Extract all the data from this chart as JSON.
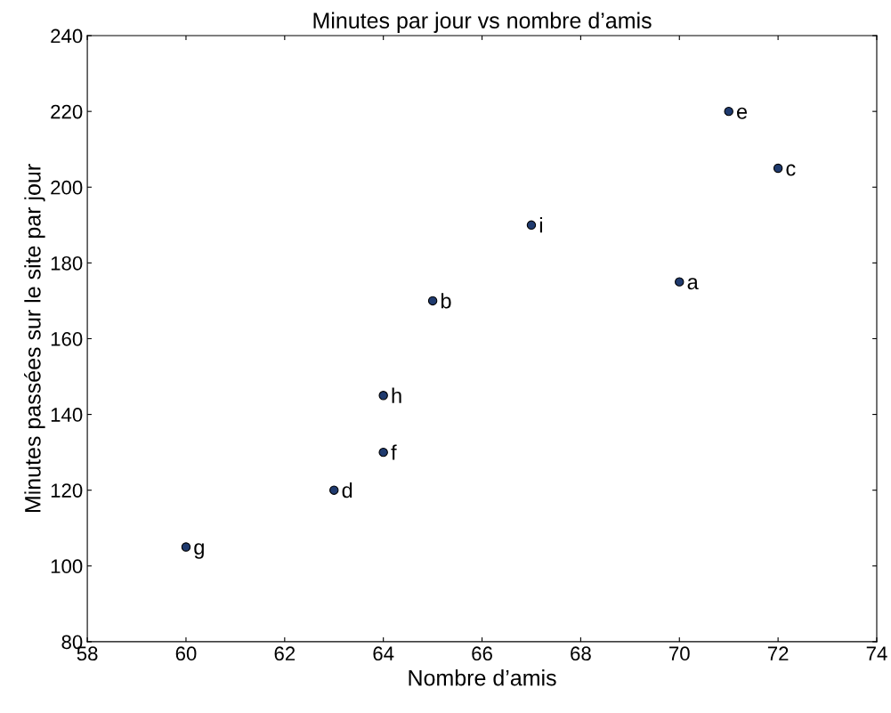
{
  "chart_data": {
    "type": "scatter",
    "title": "Minutes par jour vs nombre d’amis",
    "xlabel": "Nombre d’amis",
    "ylabel": "Minutes passées sur le site par jour",
    "x": [
      70,
      65,
      72,
      63,
      71,
      64,
      60,
      64,
      67
    ],
    "values": [
      175,
      170,
      205,
      120,
      220,
      130,
      105,
      145,
      190
    ],
    "color": "#1f3a6e",
    "marker": "circle",
    "grid": false,
    "xlim": [
      58,
      74
    ],
    "xticks": [
      58,
      60,
      62,
      64,
      66,
      68,
      70,
      72,
      74
    ],
    "ylim": [
      80,
      240
    ],
    "yticks": [
      80,
      100,
      120,
      140,
      160,
      180,
      200,
      220,
      240
    ],
    "annotations": [
      {
        "text": "a",
        "x": 70,
        "y": 175
      },
      {
        "text": "b",
        "x": 65,
        "y": 170
      },
      {
        "text": "c",
        "x": 72,
        "y": 205
      },
      {
        "text": "d",
        "x": 63,
        "y": 120
      },
      {
        "text": "e",
        "x": 71,
        "y": 220
      },
      {
        "text": "f",
        "x": 64,
        "y": 130
      },
      {
        "text": "g",
        "x": 60,
        "y": 105
      },
      {
        "text": "h",
        "x": 64,
        "y": 145
      },
      {
        "text": "i",
        "x": 67,
        "y": 190
      }
    ]
  }
}
